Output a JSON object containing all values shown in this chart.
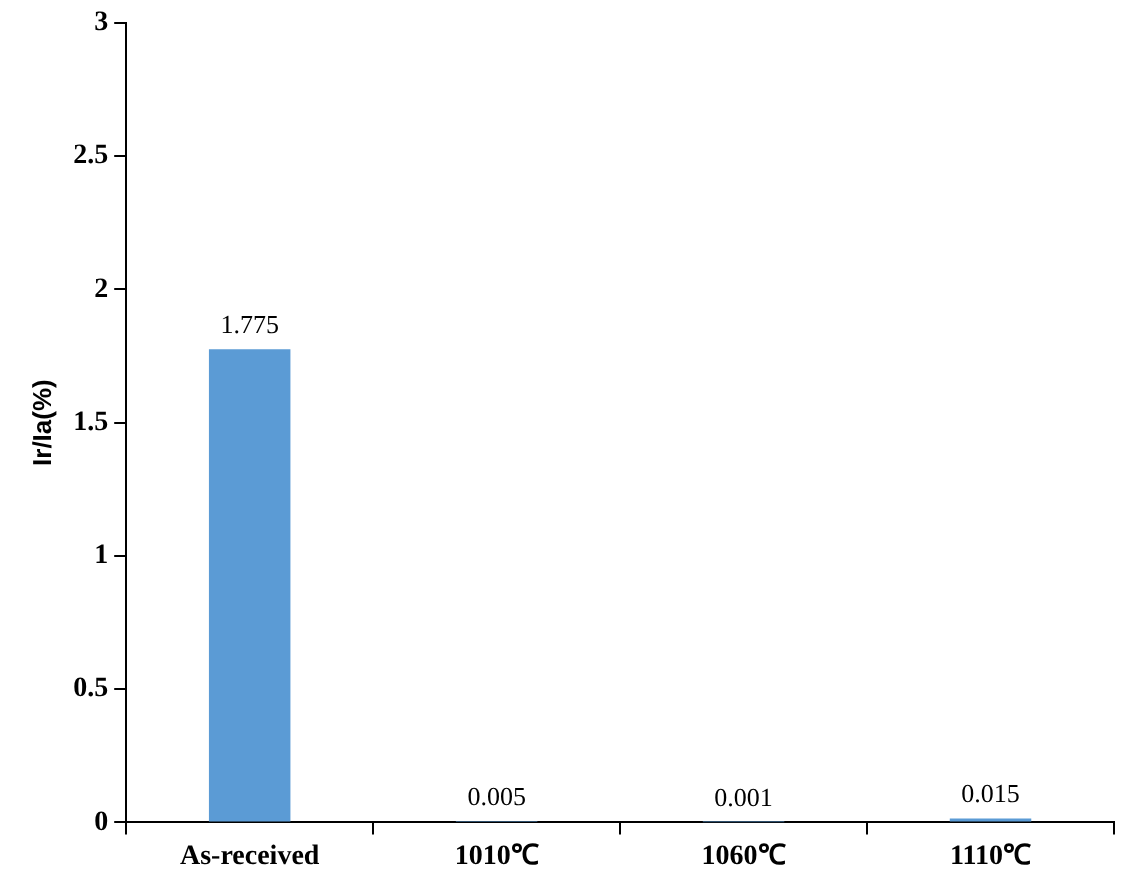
{
  "chart_data": {
    "type": "bar",
    "ylabel": "Ir/Ia(%)",
    "categories": [
      "As-received",
      "1010℃",
      "1060℃",
      "1110℃"
    ],
    "values": [
      1.775,
      0.005,
      0.001,
      0.015
    ],
    "color": "#5b9bd5",
    "ylim": [
      0,
      3
    ],
    "yticks": [
      0,
      0.5,
      1,
      1.5,
      2,
      2.5,
      3
    ],
    "data_labels": true,
    "grid": false,
    "legend": false
  }
}
